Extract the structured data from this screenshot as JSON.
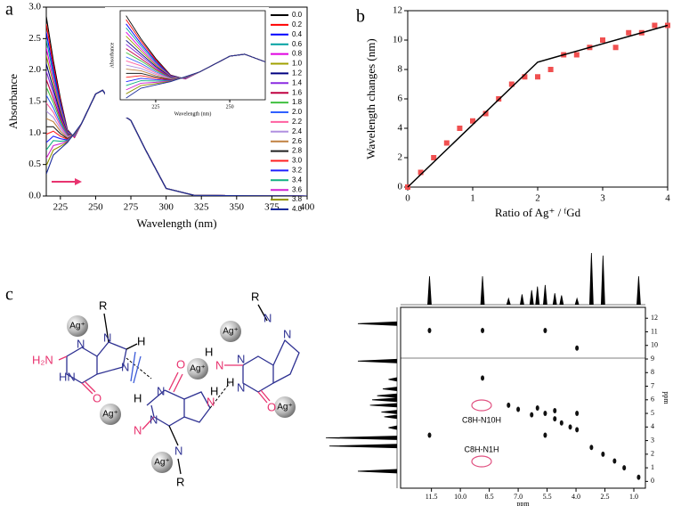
{
  "panel_labels": [
    "a",
    "b",
    "c"
  ],
  "chart_data": [
    {
      "type": "line",
      "xlabel": "Wavelength (nm)",
      "ylabel": "Absorbance",
      "x": [
        215,
        220,
        225,
        230,
        235,
        240,
        250,
        255,
        265,
        275,
        285,
        300,
        320,
        400
      ],
      "xlim": [
        215,
        400
      ],
      "xticks": [
        225,
        250,
        275,
        300,
        325,
        350,
        375,
        400
      ],
      "ylim": [
        0,
        3
      ],
      "yticks": [
        {
          "value": 0,
          "label": "0.0"
        },
        0.5,
        {
          "value": 1,
          "label": "1.0"
        },
        1.5,
        {
          "value": 2,
          "label": "2.0"
        },
        2.5,
        {
          "value": 3,
          "label": "3.0"
        }
      ],
      "series": [
        {
          "name": "0.0",
          "color": "#000000",
          "values": [
            2.85,
            2.15,
            1.55,
            1.05,
            0.93,
            1.15,
            1.62,
            1.68,
            1.35,
            1.2,
            0.75,
            0.12,
            0.01,
            0
          ]
        },
        {
          "name": "0.2",
          "color": "#ff0000",
          "values": [
            2.73,
            2.08,
            1.51,
            1.04,
            0.93,
            1.15,
            1.62,
            1.68,
            1.35,
            1.2,
            0.75,
            0.12,
            0.01,
            0
          ]
        },
        {
          "name": "0.4",
          "color": "#0000ff",
          "values": [
            2.6,
            2.0,
            1.47,
            1.03,
            0.94,
            1.15,
            1.62,
            1.68,
            1.35,
            1.2,
            0.75,
            0.12,
            0.01,
            0
          ]
        },
        {
          "name": "0.6",
          "color": "#00a0a0",
          "values": [
            2.48,
            1.93,
            1.43,
            1.02,
            0.94,
            1.15,
            1.62,
            1.68,
            1.35,
            1.2,
            0.75,
            0.12,
            0.01,
            0
          ]
        },
        {
          "name": "0.8",
          "color": "#e000e0",
          "values": [
            2.35,
            1.85,
            1.39,
            1.01,
            0.94,
            1.15,
            1.62,
            1.68,
            1.35,
            1.2,
            0.75,
            0.12,
            0.01,
            0
          ]
        },
        {
          "name": "1.0",
          "color": "#a0a000",
          "values": [
            2.23,
            1.78,
            1.35,
            1.0,
            0.95,
            1.15,
            1.62,
            1.68,
            1.35,
            1.2,
            0.75,
            0.12,
            0.01,
            0
          ]
        },
        {
          "name": "1.2",
          "color": "#000080",
          "values": [
            2.1,
            1.7,
            1.31,
            0.99,
            0.95,
            1.15,
            1.62,
            1.68,
            1.35,
            1.2,
            0.75,
            0.12,
            0.01,
            0
          ]
        },
        {
          "name": "1.4",
          "color": "#8a2be2",
          "values": [
            1.98,
            1.63,
            1.27,
            0.98,
            0.95,
            1.15,
            1.62,
            1.68,
            1.35,
            1.2,
            0.75,
            0.12,
            0.01,
            0
          ]
        },
        {
          "name": "1.6",
          "color": "#c00040",
          "values": [
            1.85,
            1.55,
            1.23,
            0.97,
            0.96,
            1.15,
            1.62,
            1.68,
            1.35,
            1.2,
            0.75,
            0.12,
            0.01,
            0
          ]
        },
        {
          "name": "1.8",
          "color": "#40c040",
          "values": [
            1.73,
            1.48,
            1.19,
            0.96,
            0.96,
            1.15,
            1.62,
            1.68,
            1.35,
            1.2,
            0.75,
            0.12,
            0.01,
            0
          ]
        },
        {
          "name": "2.0",
          "color": "#3060ff",
          "values": [
            1.6,
            1.4,
            1.15,
            0.95,
            0.96,
            1.15,
            1.62,
            1.68,
            1.35,
            1.2,
            0.75,
            0.12,
            0.01,
            0
          ]
        },
        {
          "name": "2.2",
          "color": "#ff60a0",
          "values": [
            1.48,
            1.33,
            1.11,
            0.94,
            0.97,
            1.15,
            1.62,
            1.68,
            1.35,
            1.2,
            0.75,
            0.12,
            0.01,
            0
          ]
        },
        {
          "name": "2.4",
          "color": "#b090e0",
          "values": [
            1.35,
            1.25,
            1.07,
            0.93,
            0.97,
            1.15,
            1.62,
            1.68,
            1.35,
            1.2,
            0.75,
            0.12,
            0.01,
            0
          ]
        },
        {
          "name": "2.6",
          "color": "#c08040",
          "values": [
            1.23,
            1.18,
            1.03,
            0.92,
            0.97,
            1.15,
            1.62,
            1.68,
            1.35,
            1.2,
            0.75,
            0.12,
            0.01,
            0
          ]
        },
        {
          "name": "2.8",
          "color": "#202020",
          "values": [
            1.1,
            1.1,
            0.99,
            0.91,
            0.98,
            1.15,
            1.62,
            1.68,
            1.35,
            1.2,
            0.75,
            0.12,
            0.01,
            0
          ]
        },
        {
          "name": "3.0",
          "color": "#ff2020",
          "values": [
            0.98,
            1.03,
            0.95,
            0.9,
            0.98,
            1.15,
            1.62,
            1.68,
            1.35,
            1.2,
            0.75,
            0.12,
            0.01,
            0
          ]
        },
        {
          "name": "3.2",
          "color": "#2020ff",
          "values": [
            0.85,
            0.95,
            0.91,
            0.89,
            0.98,
            1.15,
            1.62,
            1.68,
            1.35,
            1.2,
            0.75,
            0.12,
            0.01,
            0
          ]
        },
        {
          "name": "3.4",
          "color": "#10b080",
          "values": [
            0.73,
            0.88,
            0.87,
            0.88,
            0.99,
            1.15,
            1.62,
            1.68,
            1.35,
            1.2,
            0.75,
            0.12,
            0.01,
            0
          ]
        },
        {
          "name": "3.6",
          "color": "#d020d0",
          "values": [
            0.6,
            0.8,
            0.83,
            0.87,
            0.99,
            1.15,
            1.62,
            1.68,
            1.35,
            1.2,
            0.75,
            0.12,
            0.01,
            0
          ]
        },
        {
          "name": "3.8",
          "color": "#909000",
          "values": [
            0.48,
            0.73,
            0.79,
            0.86,
            0.99,
            1.15,
            1.62,
            1.68,
            1.35,
            1.2,
            0.75,
            0.12,
            0.01,
            0
          ]
        },
        {
          "name": "4.0",
          "color": "#1a2a9a",
          "values": [
            0.35,
            0.65,
            0.75,
            0.85,
            1.0,
            1.15,
            1.62,
            1.68,
            1.35,
            1.2,
            0.75,
            0.12,
            0.01,
            0
          ]
        }
      ],
      "inset": {
        "xlabel": "Wavelength (nm)",
        "ylabel": "Absorbance",
        "xlim": [
          213,
          262
        ],
        "ylim": [
          0.3,
          3.0
        ],
        "xticks": [
          225,
          250
        ]
      }
    },
    {
      "type": "scatter",
      "xlabel": "Ratio of Ag⁺ / ᶠGd",
      "ylabel": "Wavelength changes (nm)",
      "xlim": [
        0,
        4
      ],
      "xticks": [
        0,
        1,
        2,
        3,
        4
      ],
      "ylim": [
        0,
        12
      ],
      "yticks": [
        0,
        2,
        4,
        6,
        8,
        10,
        12
      ],
      "series": [
        {
          "mode": "markers",
          "color": "#f05050",
          "x": [
            0,
            0.2,
            0.4,
            0.6,
            0.8,
            1.0,
            1.2,
            1.4,
            1.6,
            1.8,
            2.0,
            2.2,
            2.4,
            2.6,
            2.8,
            3.0,
            3.2,
            3.4,
            3.6,
            3.8,
            4.0
          ],
          "values": [
            0,
            1,
            2,
            3,
            4,
            4.5,
            5,
            6,
            7,
            7.5,
            7.5,
            8,
            9,
            9,
            9.5,
            10,
            9.5,
            10.5,
            10.5,
            11,
            11
          ]
        },
        {
          "mode": "line",
          "color": "#000000",
          "x": [
            0,
            2,
            4
          ],
          "values": [
            0,
            8.5,
            11
          ]
        }
      ]
    },
    {
      "type": "nmr",
      "xlabel": "ppm",
      "ylabel": "ppm",
      "xlim": [
        13.1,
        0.4
      ],
      "xticks": [
        11.5,
        {
          "value": 10,
          "label": "10.0"
        },
        8.5,
        {
          "value": 7,
          "label": "7.0"
        },
        5.5,
        {
          "value": 4,
          "label": "4.0"
        },
        2.5,
        {
          "value": 1,
          "label": "1.0"
        }
      ],
      "ylim": [
        -0.5,
        12.8
      ],
      "yticks": [
        0,
        1,
        2,
        3,
        4,
        5,
        6,
        7,
        8,
        9,
        10,
        11,
        12
      ],
      "annotations": [
        "C8H-N10H",
        "C8H-N1H"
      ],
      "projection": {
        "ppm": [
          11.6,
          8.85,
          7.5,
          6.8,
          6.3,
          6.0,
          5.6,
          5.1,
          4.75,
          3.95,
          3.2,
          2.6,
          0.75
        ],
        "height": [
          0.55,
          0.55,
          0.12,
          0.2,
          0.28,
          0.35,
          0.38,
          0.22,
          0.18,
          0.12,
          1.0,
          0.95,
          0.55
        ]
      },
      "cross_peaks": [
        [
          11.6,
          3.4
        ],
        [
          11.6,
          11.1
        ],
        [
          8.85,
          7.6
        ],
        [
          8.85,
          11.1
        ],
        [
          7.5,
          5.6
        ],
        [
          7.0,
          5.3
        ],
        [
          6.3,
          4.9
        ],
        [
          6.0,
          5.4
        ],
        [
          5.6,
          3.4
        ],
        [
          5.6,
          5.0
        ],
        [
          5.6,
          11.1
        ],
        [
          5.1,
          4.6
        ],
        [
          5.1,
          5.2
        ],
        [
          4.75,
          4.3
        ],
        [
          4.3,
          4.0
        ],
        [
          3.95,
          3.8
        ],
        [
          3.95,
          5.0
        ],
        [
          3.95,
          9.8
        ],
        [
          3.2,
          2.5
        ],
        [
          2.6,
          2.0
        ],
        [
          2.0,
          1.5
        ],
        [
          1.5,
          1.0
        ],
        [
          0.75,
          0.3
        ]
      ]
    }
  ],
  "diagram": {
    "texts": [
      "R",
      "N",
      "H₂N",
      "N",
      "HN",
      "O",
      "N",
      "H",
      "H",
      "N",
      "N",
      "O",
      "N",
      "N",
      "N",
      "R",
      "H",
      "R",
      "N",
      "H",
      "N",
      "N",
      "N",
      "O",
      "N",
      "H"
    ],
    "ag_labels": [
      "Ag⁺",
      "Ag⁺",
      "Ag⁺",
      "Ag⁺",
      "Ag⁺",
      "Ag⁺"
    ]
  }
}
